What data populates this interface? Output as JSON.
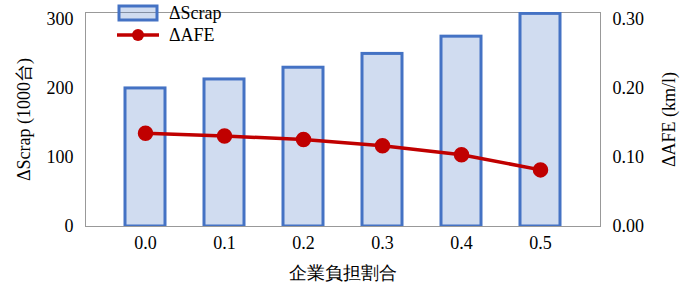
{
  "chart_data": {
    "type": "bar",
    "categories": [
      "0.0",
      "0.1",
      "0.2",
      "0.3",
      "0.4",
      "0.5"
    ],
    "xlabel": "企業負担割合",
    "ylabel": "ΔScrap (1000台)",
    "y2label": "ΔAFE (km/l)",
    "ylim": [
      0,
      310
    ],
    "yticks": [
      0,
      100,
      200,
      300
    ],
    "y2lim": [
      0,
      0.31
    ],
    "y2ticks": [
      {
        "value": 0,
        "label": "0.00"
      },
      {
        "value": 0.1,
        "label": "0.10"
      },
      {
        "value": 0.2,
        "label": "0.20"
      },
      {
        "value": 0.3,
        "label": "0.30"
      }
    ],
    "legend": "upper left",
    "series": [
      {
        "name": "ΔScrap",
        "type": "bar",
        "color": "#4472c4",
        "values": [
          200,
          213,
          230,
          250,
          275,
          308
        ]
      },
      {
        "name": "ΔAFE",
        "type": "line",
        "axis": "y2",
        "color": "#c00000",
        "marker": "circle",
        "values": [
          0.135,
          0.131,
          0.126,
          0.117,
          0.104,
          0.082
        ]
      }
    ]
  }
}
